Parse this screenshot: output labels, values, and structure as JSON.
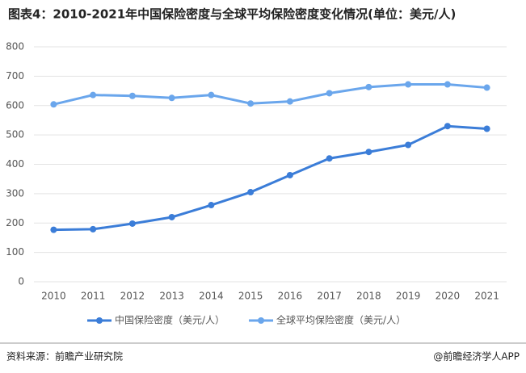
{
  "chart_data": {
    "type": "line",
    "title": "图表4：2010-2021年中国保险密度与全球平均保险密度变化情况(单位：美元/人)",
    "categories": [
      "2010",
      "2011",
      "2012",
      "2013",
      "2014",
      "2015",
      "2016",
      "2017",
      "2018",
      "2019",
      "2020",
      "2021"
    ],
    "series": [
      {
        "name": "中国保险密度（美元/人）",
        "color": "#3b7dd8",
        "values": [
          177,
          179,
          198,
          220,
          261,
          305,
          363,
          420,
          442,
          466,
          530,
          521
        ]
      },
      {
        "name": "全球平均保险密度（美元/人）",
        "color": "#6aa6ec",
        "values": [
          604,
          636,
          633,
          626,
          636,
          607,
          614,
          642,
          663,
          672,
          672,
          661
        ]
      }
    ],
    "ylim": [
      0,
      800
    ],
    "yticks": [
      0,
      100,
      200,
      300,
      400,
      500,
      600,
      700,
      800
    ],
    "grid": true,
    "legend": "bottom",
    "source": "资料来源：前瞻产业研究院",
    "credit": "@前瞻经济学人APP"
  }
}
